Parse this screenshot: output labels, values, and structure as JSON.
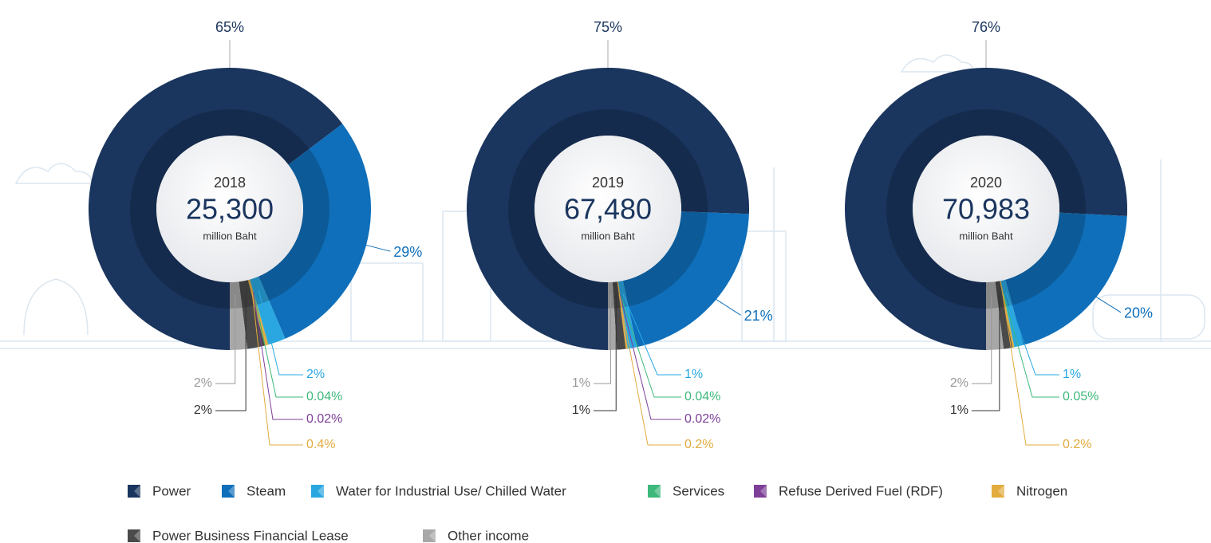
{
  "chart_data": [
    {
      "type": "pie",
      "year": "2018",
      "total": "25,300",
      "unit": "million Baht",
      "categories": [
        "Power",
        "Steam",
        "Water for Industrial Use/ Chilled Water",
        "Services",
        "Refuse Derived Fuel (RDF)",
        "Nitrogen",
        "Power Business Financial Lease",
        "Other income"
      ],
      "values": [
        65,
        29,
        2,
        0.04,
        0.02,
        0.4,
        2,
        2
      ],
      "value_labels": [
        "65%",
        "29%",
        "2%",
        "0.04%",
        "0.02%",
        "0.4%",
        "2%",
        "2%"
      ],
      "colors": [
        "#1a355e",
        "#0f6fba",
        "#2aa7e0",
        "#3db87a",
        "#7d3f98",
        "#e2ac3f",
        "#4a4a4a",
        "#a8a8a8"
      ]
    },
    {
      "type": "pie",
      "year": "2019",
      "total": "67,480",
      "unit": "million Baht",
      "categories": [
        "Power",
        "Steam",
        "Water for Industrial Use/ Chilled Water",
        "Services",
        "Refuse Derived Fuel (RDF)",
        "Nitrogen",
        "Power Business Financial Lease",
        "Other income"
      ],
      "values": [
        75,
        21,
        1,
        0.04,
        0.02,
        0.2,
        1,
        1
      ],
      "value_labels": [
        "75%",
        "21%",
        "1%",
        "0.04%",
        "0.02%",
        "0.2%",
        "1%",
        "1%"
      ],
      "colors": [
        "#1a355e",
        "#0f6fba",
        "#2aa7e0",
        "#3db87a",
        "#7d3f98",
        "#e2ac3f",
        "#4a4a4a",
        "#a8a8a8"
      ]
    },
    {
      "type": "pie",
      "year": "2020",
      "total": "70,983",
      "unit": "million Baht",
      "categories": [
        "Power",
        "Steam",
        "Water for Industrial Use/ Chilled Water",
        "Services",
        "Refuse Derived Fuel (RDF)",
        "Nitrogen",
        "Power Business Financial Lease",
        "Other income"
      ],
      "values": [
        76,
        20,
        1,
        0.05,
        null,
        0.2,
        1,
        2
      ],
      "value_labels": [
        "76%",
        "20%",
        "1%",
        "0.05%",
        null,
        "0.2%",
        "1%",
        "2%"
      ],
      "colors": [
        "#1a355e",
        "#0f6fba",
        "#2aa7e0",
        "#3db87a",
        "#7d3f98",
        "#e2ac3f",
        "#4a4a4a",
        "#a8a8a8"
      ]
    }
  ]
}
